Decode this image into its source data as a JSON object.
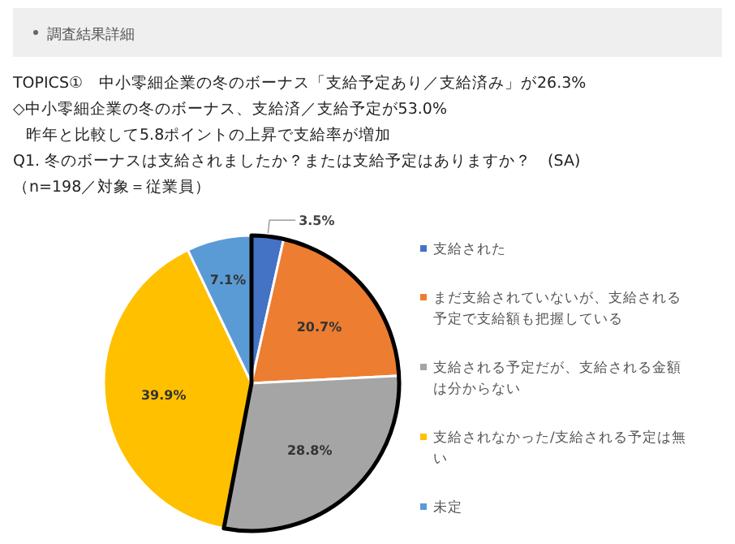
{
  "chart_data": {
    "type": "pie",
    "title": "TOPICS①　中小零細企業の冬のボーナス「支給予定あり／支給済み」が26.3%",
    "subtitle": "◇中小零細企業の冬のボーナス、支給済／支給予定が53.0%",
    "annotations": [
      "調査結果詳細",
      "昨年と比較して5.8ポイントの上昇で支給率が増加",
      "Q1. 冬のボーナスは支給されましたか？または支給予定はありますか？　(SA)",
      "（n=198／対象＝従業員）"
    ],
    "categories": [
      "支給された",
      "まだ支給されていないが、支給される予定で支給額も把握している",
      "支給される予定だが、支給される金額は分からない",
      "支給されなかった/支給される予定は無い",
      "未定"
    ],
    "values": [
      3.5,
      20.7,
      28.8,
      39.9,
      7.1
    ],
    "colors": [
      "#4472c4",
      "#ed7d31",
      "#a5a5a5",
      "#ffc000",
      "#5b9bd5"
    ],
    "value_labels": [
      "3.5%",
      "20.7%",
      "28.8%",
      "39.9%",
      "7.1%"
    ],
    "legend": "right"
  }
}
